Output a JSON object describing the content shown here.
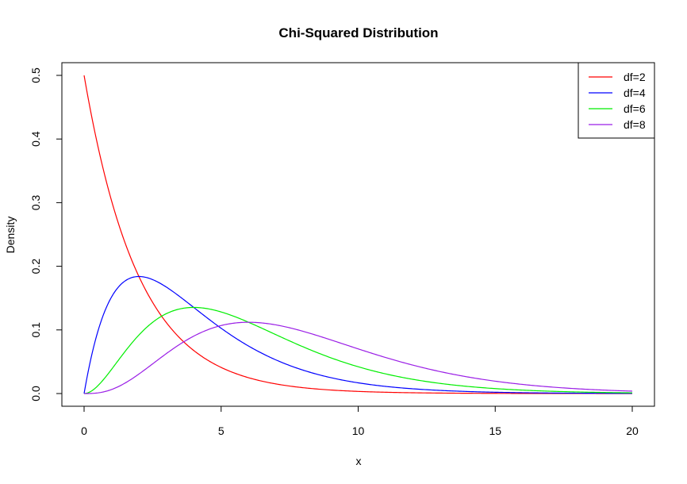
{
  "chart_data": {
    "type": "line",
    "title": "Chi-Squared Distribution",
    "xlabel": "x",
    "ylabel": "Density",
    "xlim": [
      0,
      20
    ],
    "ylim": [
      0,
      0.5
    ],
    "x_ticks": [
      "0",
      "5",
      "10",
      "15",
      "20"
    ],
    "y_ticks": [
      "0.0",
      "0.1",
      "0.2",
      "0.3",
      "0.4",
      "0.5"
    ],
    "grid": false,
    "legend_position": "top-right",
    "series": [
      {
        "name": "df=2",
        "df": 2,
        "color": "#ff0000",
        "x": [
          0,
          0.5,
          1,
          1.5,
          2,
          2.5,
          3,
          3.5,
          4,
          5,
          6,
          7,
          8,
          9,
          10,
          12,
          14,
          16,
          18,
          20
        ],
        "y": [
          0.5,
          0.389,
          0.303,
          0.236,
          0.184,
          0.143,
          0.112,
          0.087,
          0.068,
          0.041,
          0.025,
          0.015,
          0.009,
          0.006,
          0.003,
          0.001,
          0.0005,
          0.0002,
          0.0001,
          0.0
        ]
      },
      {
        "name": "df=4",
        "df": 4,
        "color": "#0000ff",
        "x": [
          0,
          0.5,
          1,
          1.5,
          2,
          2.5,
          3,
          3.5,
          4,
          5,
          6,
          7,
          8,
          9,
          10,
          12,
          14,
          16,
          18,
          20
        ],
        "y": [
          0.0,
          0.097,
          0.152,
          0.177,
          0.184,
          0.179,
          0.167,
          0.152,
          0.135,
          0.103,
          0.075,
          0.053,
          0.037,
          0.025,
          0.017,
          0.007,
          0.003,
          0.001,
          0.0006,
          0.0002
        ]
      },
      {
        "name": "df=6",
        "df": 6,
        "color": "#00ee00",
        "x": [
          0,
          0.5,
          1,
          1.5,
          2,
          2.5,
          3,
          3.5,
          4,
          5,
          6,
          7,
          8,
          9,
          10,
          12,
          14,
          16,
          18,
          20
        ],
        "y": [
          0.0,
          0.012,
          0.038,
          0.066,
          0.092,
          0.112,
          0.126,
          0.133,
          0.135,
          0.128,
          0.112,
          0.092,
          0.073,
          0.056,
          0.042,
          0.022,
          0.011,
          0.005,
          0.002,
          0.001
        ]
      },
      {
        "name": "df=8",
        "df": 8,
        "color": "#9a1ee6",
        "x": [
          0,
          0.5,
          1,
          1.5,
          2,
          2.5,
          3,
          3.5,
          4,
          5,
          6,
          7,
          8,
          9,
          10,
          12,
          14,
          16,
          18,
          20
        ],
        "y": [
          0.0,
          0.001,
          0.006,
          0.017,
          0.031,
          0.047,
          0.063,
          0.078,
          0.09,
          0.107,
          0.112,
          0.108,
          0.098,
          0.084,
          0.07,
          0.045,
          0.026,
          0.014,
          0.007,
          0.004
        ]
      }
    ]
  }
}
